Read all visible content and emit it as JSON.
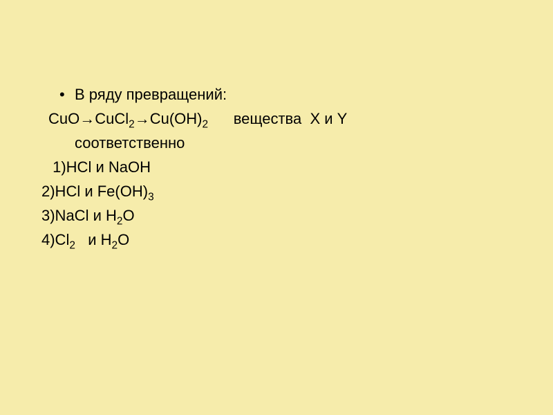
{
  "slide": {
    "background_color": "#f6ecab",
    "text_color": "#000000",
    "font_size_pt": 22,
    "font_family": "Arial",
    "bullet_char": "•",
    "lines": {
      "l0": "В ряду превращений:",
      "l1_pre": "CuO→CuCl",
      "l1_sub1": "2",
      "l1_mid": "→Cu(OH)",
      "l1_sub2": "2",
      "l1_post": "      вещества  X и Y",
      "l1b": "соответственно",
      "l2": " 1)HCl и NaOH",
      "l3_pre": "2)HCl и Fe(OH)",
      "l3_sub": "3",
      "l4_pre": "3)NaCl и H",
      "l4_sub1": "2",
      "l4_mid": "O",
      "l5_pre": "4)Cl",
      "l5_sub1": "2",
      "l5_mid": "   и H",
      "l5_sub2": "2",
      "l5_post": "O"
    }
  }
}
